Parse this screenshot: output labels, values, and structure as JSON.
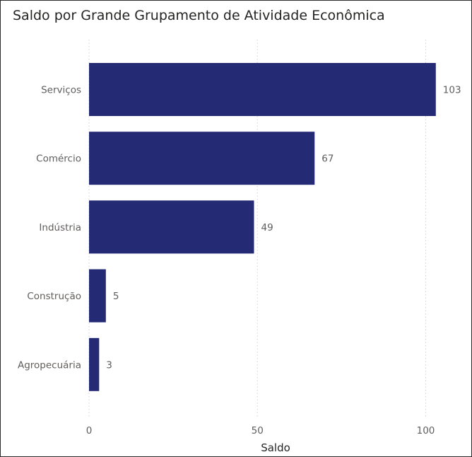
{
  "chart_data": {
    "type": "bar",
    "orientation": "horizontal",
    "title": "Saldo por Grande Grupamento de Atividade Econômica",
    "xlabel": "Saldo",
    "ylabel": "",
    "categories": [
      "Serviços",
      "Comércio",
      "Indústria",
      "Construção",
      "Agropecuária"
    ],
    "values": [
      103,
      67,
      49,
      5,
      3
    ],
    "xlim": [
      0,
      103
    ],
    "x_ticks": [
      0,
      50,
      100
    ],
    "x_tick_labels": [
      "0",
      "50",
      "100"
    ],
    "grid": true,
    "bar_color": "#252a75"
  }
}
